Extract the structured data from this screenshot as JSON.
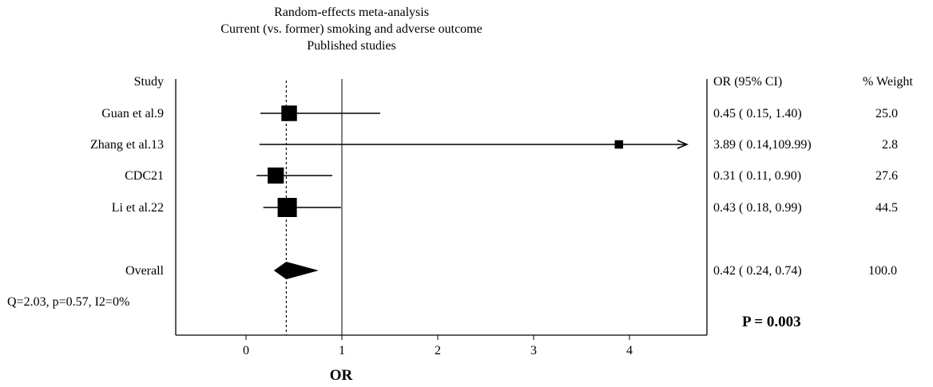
{
  "chart_data": {
    "type": "forest",
    "title_lines": [
      "Random-effects meta-analysis",
      "Current (vs. former) smoking and adverse outcome",
      "Published studies"
    ],
    "column_headers": {
      "study": "Study",
      "or_ci": "OR (95% CI)",
      "weight": "% Weight"
    },
    "studies": [
      {
        "label": "Guan et al.9",
        "or": 0.45,
        "lo": 0.15,
        "hi": 1.4,
        "weight": 25.0,
        "ci_text": "0.45  (  0.15,  1.40)",
        "weight_text": "25.0"
      },
      {
        "label": "Zhang et al.13",
        "or": 3.89,
        "lo": 0.14,
        "hi": 109.99,
        "weight": 2.8,
        "ci_text": "3.89  (  0.14,109.99)",
        "weight_text": "2.8",
        "arrow": true
      },
      {
        "label": "CDC21",
        "or": 0.31,
        "lo": 0.11,
        "hi": 0.9,
        "weight": 27.6,
        "ci_text": "0.31  (  0.11,  0.90)",
        "weight_text": "27.6"
      },
      {
        "label": "Li et al.22",
        "or": 0.43,
        "lo": 0.18,
        "hi": 0.99,
        "weight": 44.5,
        "ci_text": "0.43  (  0.18,  0.99)",
        "weight_text": "44.5"
      }
    ],
    "overall": {
      "label": "Overall",
      "or": 0.42,
      "lo": 0.24,
      "hi": 0.74,
      "ci_text": "0.42  (  0.24,  0.74)",
      "weight_text": "100.0"
    },
    "heterogeneity": "Q=2.03, p=0.57, I2=0%",
    "p_value": "P = 0.003",
    "xlabel": "OR",
    "xticks": [
      0,
      1,
      2,
      3,
      4
    ],
    "xlim": [
      -0.72,
      4.6
    ],
    "null_line": 1,
    "pooled_line": 0.42
  }
}
